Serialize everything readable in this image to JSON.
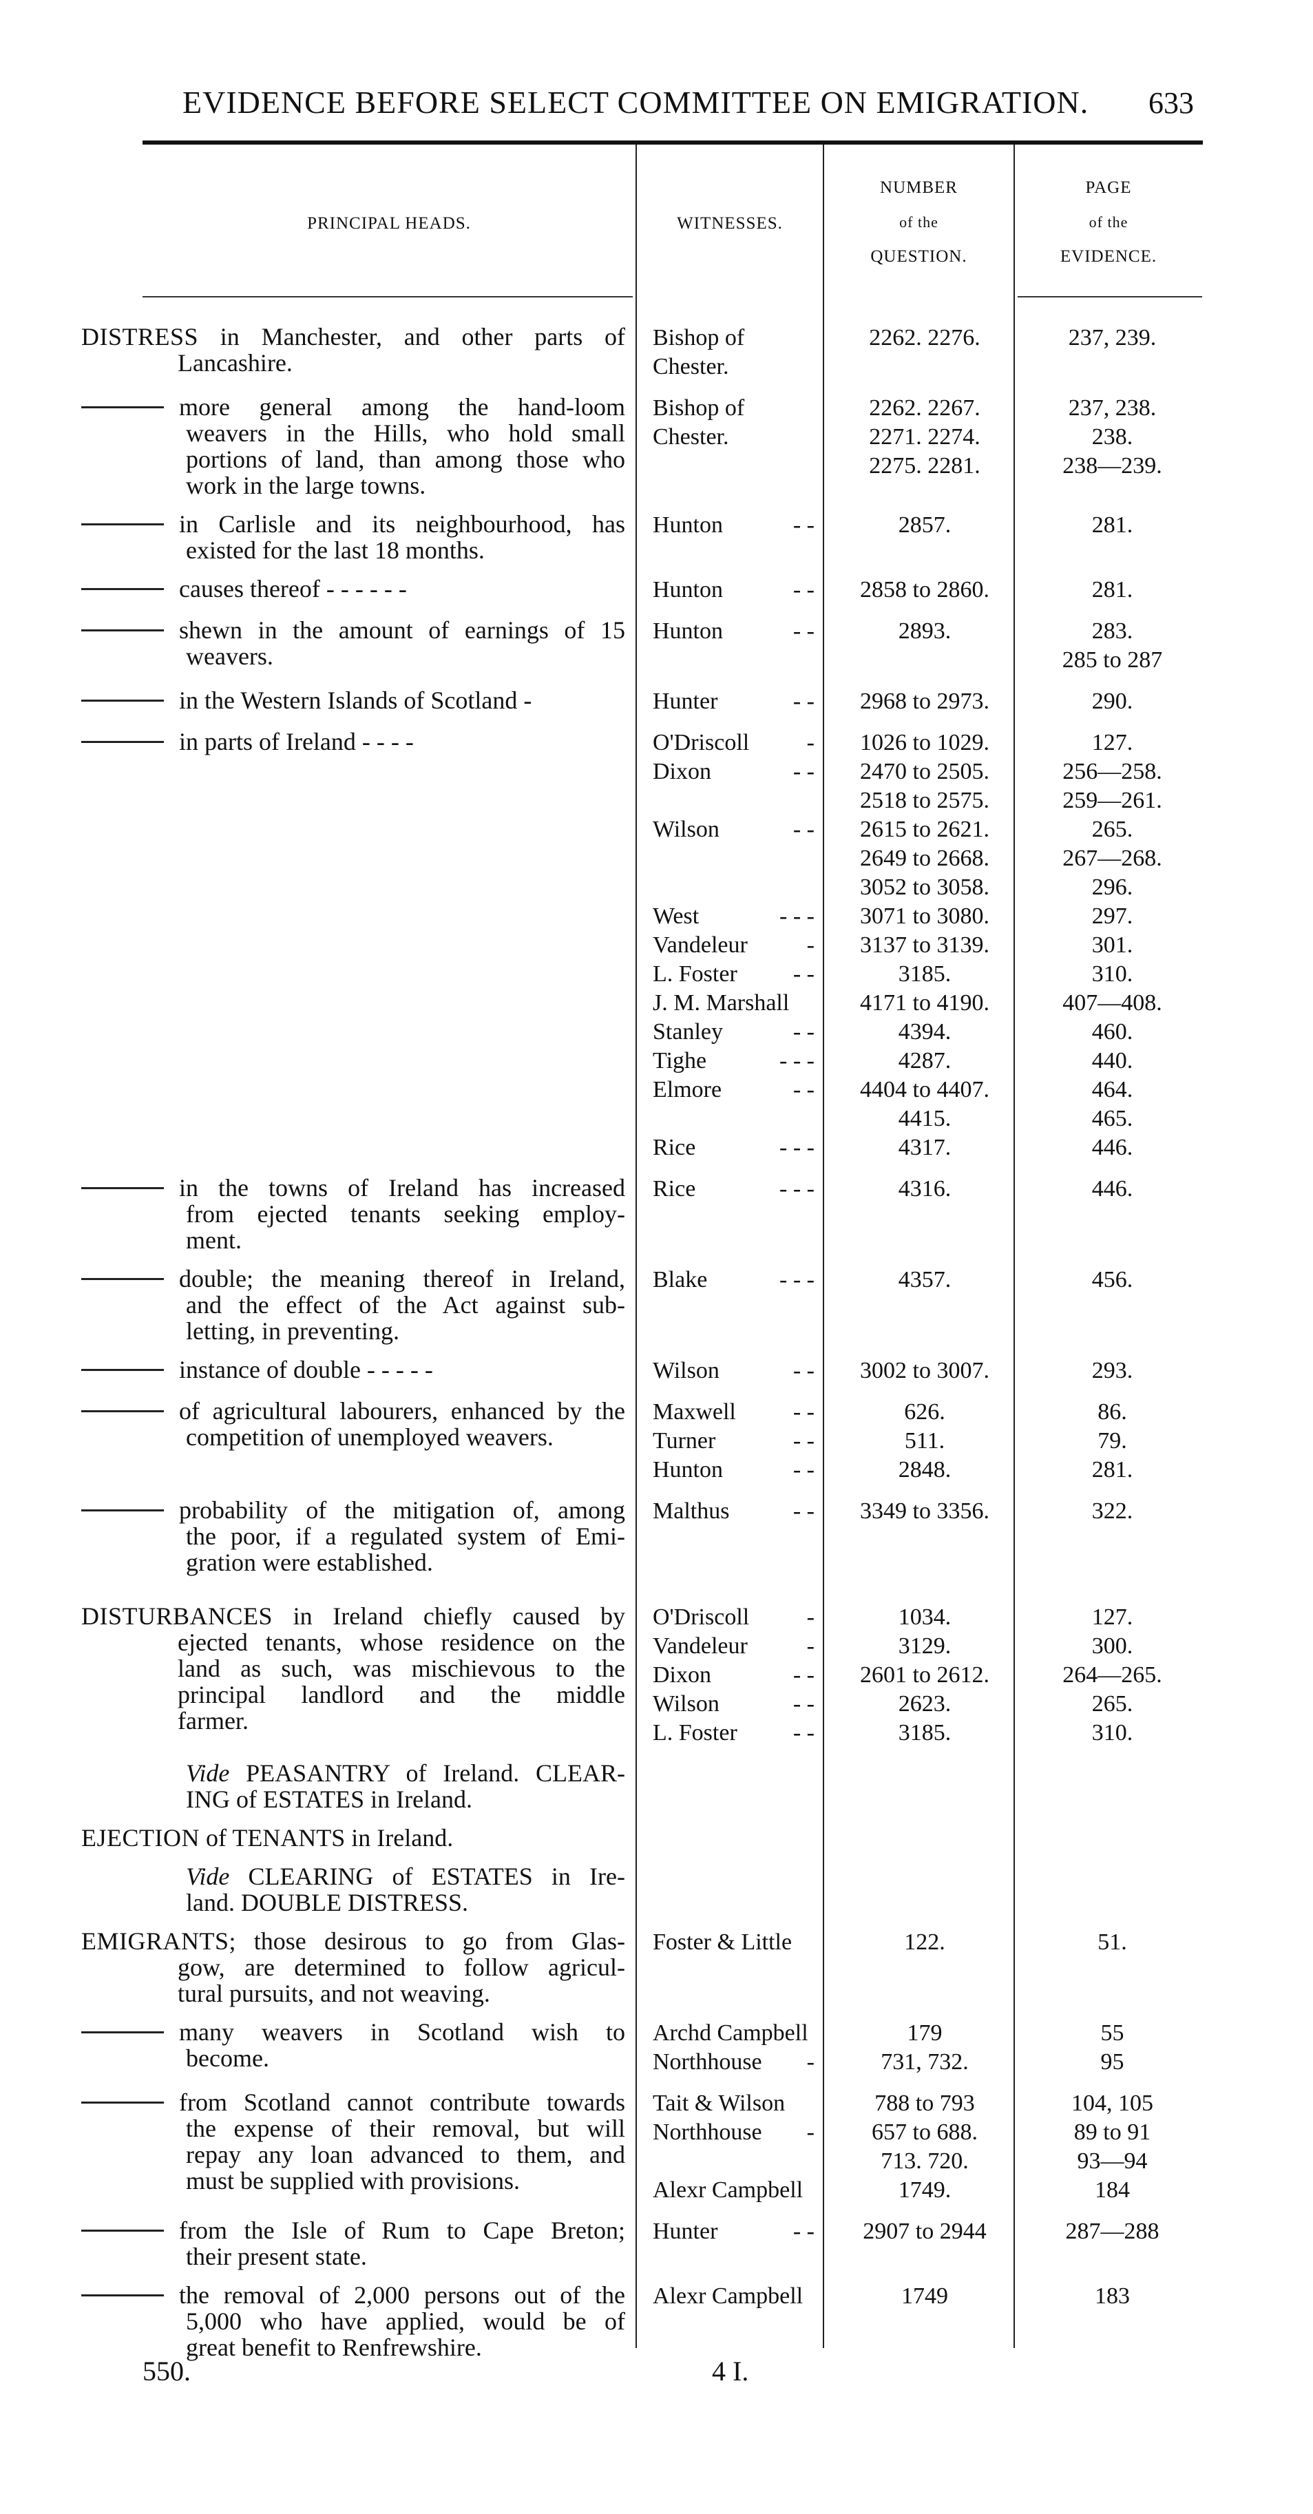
{
  "header": {
    "title": "EVIDENCE BEFORE SELECT COMMITTEE ON EMIGRATION.",
    "page": "633"
  },
  "columns": {
    "heads": "PRINCIPAL HEADS.",
    "witnesses": "WITNESSES.",
    "number": [
      "NUMBER",
      "of the",
      "QUESTION."
    ],
    "page": [
      "PAGE",
      "of the",
      "EVIDENCE."
    ]
  },
  "entries": [
    {
      "head": "DISTRESS",
      "lines": [
        " in Manchester, and other parts of",
        "Lancashire."
      ],
      "rows": [
        {
          "w": "Bishop of",
          "d": "",
          "n": "2262. 2276.",
          "p": "237, 239."
        },
        {
          "w": "Chester.",
          "d": "",
          "n": "",
          "p": ""
        }
      ]
    },
    {
      "dash": true,
      "lines": [
        "more general among the hand-loom",
        "weavers in the Hills, who hold small",
        "portions of land, than among those who",
        "work in the large towns."
      ],
      "rows": [
        {
          "w": "Bishop of",
          "d": "",
          "n": "2262. 2267.",
          "p": "237, 238."
        },
        {
          "w": "Chester.",
          "d": "",
          "n": "2271. 2274.",
          "p": "238."
        },
        {
          "w": "",
          "d": "",
          "n": "2275. 2281.",
          "p": "238—239."
        }
      ]
    },
    {
      "dash": true,
      "lines": [
        "in Carlisle and its neighbourhood, has",
        "existed for the last 18 months."
      ],
      "rows": [
        {
          "w": "Hunton",
          "d": "- -",
          "n": "2857.",
          "p": "281."
        }
      ]
    },
    {
      "dash": true,
      "lines": [
        "causes thereof  -  -  -  -  -  -"
      ],
      "rows": [
        {
          "w": "Hunton",
          "d": "- -",
          "n": "2858 to 2860.",
          "p": "281."
        }
      ]
    },
    {
      "dash": true,
      "lines": [
        "shewn in the amount of earnings of 15",
        "weavers."
      ],
      "rows": [
        {
          "w": "Hunton",
          "d": "- -",
          "n": "2893.",
          "p": "283."
        },
        {
          "w": "",
          "d": "",
          "n": "",
          "p": "285 to 287"
        }
      ]
    },
    {
      "dash": true,
      "lines": [
        "in the Western Islands of Scotland  -"
      ],
      "rows": [
        {
          "w": "Hunter",
          "d": "- -",
          "n": "2968 to 2973.",
          "p": "290."
        }
      ]
    },
    {
      "dash": true,
      "lines": [
        "in parts of Ireland  -  -  -  -"
      ],
      "rows": [
        {
          "w": "O'Driscoll",
          "d": "-",
          "n": "1026 to 1029.",
          "p": "127."
        },
        {
          "w": "Dixon",
          "d": "- -",
          "n": "2470 to 2505.",
          "p": "256—258."
        },
        {
          "w": "",
          "d": "",
          "n": "2518 to 2575.",
          "p": "259—261."
        },
        {
          "w": "Wilson",
          "d": "- -",
          "n": "2615 to 2621.",
          "p": "265."
        },
        {
          "w": "",
          "d": "",
          "n": "2649 to 2668.",
          "p": "267—268."
        },
        {
          "w": "",
          "d": "",
          "n": "3052 to 3058.",
          "p": "296."
        },
        {
          "w": "West",
          "d": "- - -",
          "n": "3071 to 3080.",
          "p": "297."
        },
        {
          "w": "Vandeleur",
          "d": "-",
          "n": "3137 to 3139.",
          "p": "301."
        },
        {
          "w": "L. Foster",
          "d": "- -",
          "n": "3185.",
          "p": "310."
        },
        {
          "w": "J. M. Marshall",
          "d": "",
          "n": "4171 to 4190.",
          "p": "407—408."
        },
        {
          "w": "Stanley",
          "d": "- -",
          "n": "4394.",
          "p": "460."
        },
        {
          "w": "Tighe",
          "d": "- - -",
          "n": "4287.",
          "p": "440."
        },
        {
          "w": "Elmore",
          "d": "- -",
          "n": "4404 to 4407.",
          "p": "464."
        },
        {
          "w": "",
          "d": "",
          "n": "4415.",
          "p": "465."
        },
        {
          "w": "Rice",
          "d": "- - -",
          "n": "4317.",
          "p": "446."
        }
      ]
    },
    {
      "dash": true,
      "lines": [
        "in the towns of Ireland has increased",
        "from ejected tenants seeking employ-",
        "ment."
      ],
      "rows": [
        {
          "w": "Rice",
          "d": "- - -",
          "n": "4316.",
          "p": "446."
        }
      ]
    },
    {
      "dash": true,
      "lines": [
        "double; the meaning thereof in Ireland,",
        "and the effect of the Act against sub-",
        "letting, in preventing."
      ],
      "rows": [
        {
          "w": "Blake",
          "d": "- - -",
          "n": "4357.",
          "p": "456."
        }
      ]
    },
    {
      "dash": true,
      "lines": [
        "instance of double  -  -  -  -  -"
      ],
      "rows": [
        {
          "w": "Wilson",
          "d": "- -",
          "n": "3002 to 3007.",
          "p": "293."
        }
      ]
    },
    {
      "dash": true,
      "lines": [
        "of agricultural labourers, enhanced by the",
        "competition of unemployed weavers."
      ],
      "rows": [
        {
          "w": "Maxwell",
          "d": "- -",
          "n": "626.",
          "p": "86."
        },
        {
          "w": "Turner",
          "d": "- -",
          "n": "511.",
          "p": "79."
        },
        {
          "w": "Hunton",
          "d": "- -",
          "n": "2848.",
          "p": "281."
        }
      ]
    },
    {
      "dash": true,
      "lines": [
        "probability of the mitigation of, among",
        "the poor, if a regulated system of Emi-",
        "gration were established."
      ],
      "rows": [
        {
          "w": "Malthus",
          "d": "- -",
          "n": "3349 to 3356.",
          "p": "322."
        }
      ]
    },
    {
      "head": "DISTURBANCES",
      "gap": true,
      "lines": [
        " in Ireland chiefly caused by",
        "ejected tenants, whose residence on the",
        "land as such, was mischievous to the",
        "principal landlord and the middle",
        "farmer."
      ],
      "rows": [
        {
          "w": "O'Driscoll",
          "d": "-",
          "n": "1034.",
          "p": "127."
        },
        {
          "w": "Vandeleur",
          "d": "-",
          "n": "3129.",
          "p": "300."
        },
        {
          "w": "Dixon",
          "d": "- -",
          "n": "2601 to 2612.",
          "p": "264—265."
        },
        {
          "w": "Wilson",
          "d": "- -",
          "n": "2623.",
          "p": "265."
        },
        {
          "w": "L. Foster",
          "d": "- -",
          "n": "3185.",
          "p": "310."
        }
      ]
    },
    {
      "vide": "Vide",
      "lines": [
        " PEASANTRY of Ireland. CLEAR-",
        "ING of ESTATES in Ireland."
      ],
      "rows": []
    },
    {
      "head": "EJECTION",
      "lines": [
        " of TENANTS in Ireland."
      ],
      "rows": []
    },
    {
      "vide": "Vide",
      "lines": [
        " CLEARING of ESTATES in Ire-",
        "land. DOUBLE DISTRESS."
      ],
      "rows": []
    },
    {
      "head": "EMIGRANTS",
      "lines": [
        "; those desirous to go from Glas-",
        "gow, are determined to follow agricul-",
        "tural pursuits, and not weaving."
      ],
      "rows": [
        {
          "w": "Foster & Little",
          "d": "",
          "n": "122.",
          "p": "51."
        }
      ]
    },
    {
      "dash": true,
      "lines": [
        "many weavers in Scotland wish to",
        "become."
      ],
      "rows": [
        {
          "w": "Archd Campbell",
          "d": "",
          "n": "179",
          "p": "55"
        },
        {
          "w": "Northhouse",
          "d": "-",
          "n": "731, 732.",
          "p": "95"
        }
      ]
    },
    {
      "dash": true,
      "lines": [
        "from Scotland cannot contribute towards",
        "the expense of their removal, but will",
        "repay any loan advanced to them, and",
        "must be supplied with provisions."
      ],
      "rows": [
        {
          "w": "Tait & Wilson",
          "d": "",
          "n": "788 to 793",
          "p": "104, 105"
        },
        {
          "w": "Northhouse",
          "d": "-",
          "n": "657 to 688.",
          "p": "89 to 91"
        },
        {
          "w": "",
          "d": "",
          "n": "713. 720.",
          "p": "93—94"
        },
        {
          "w": "Alexr Campbell",
          "d": "",
          "n": "1749.",
          "p": "184"
        }
      ]
    },
    {
      "dash": true,
      "lines": [
        "from the Isle of Rum to Cape Breton;",
        "their present state."
      ],
      "rows": [
        {
          "w": "Hunter",
          "d": "- -",
          "n": "2907 to 2944",
          "p": "287—288"
        }
      ]
    },
    {
      "dash": true,
      "lines": [
        "the removal of 2,000 persons out of the",
        "5,000 who have applied, would be of",
        "great benefit to Renfrewshire."
      ],
      "rows": [
        {
          "w": "Alexr Campbell",
          "d": "",
          "n": "1749",
          "p": "183"
        }
      ]
    }
  ],
  "footer": {
    "left": "550.",
    "center": "4 I."
  }
}
